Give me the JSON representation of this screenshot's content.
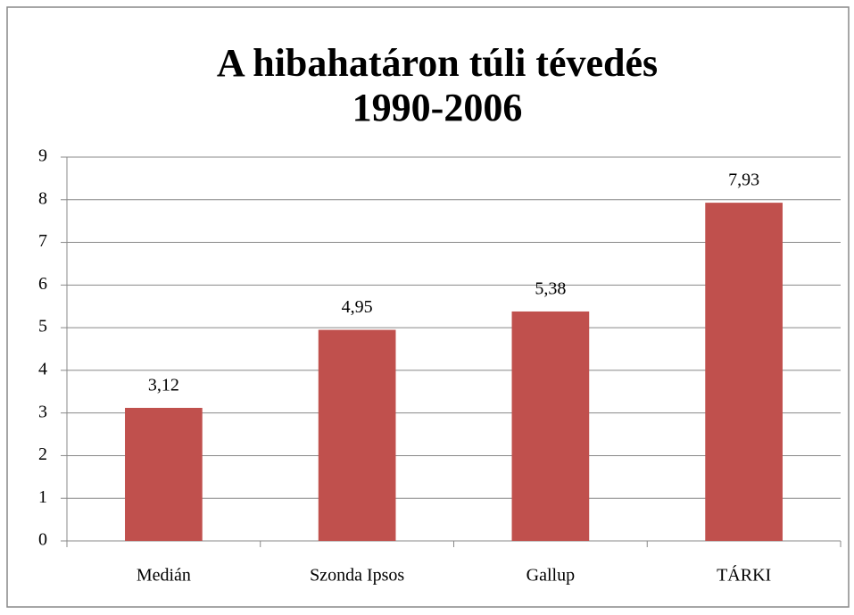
{
  "chart_data": {
    "type": "bar",
    "title": [
      "A hibahatáron túli tévedés",
      "1990-2006"
    ],
    "categories": [
      "Medián",
      "Szonda Ipsos",
      "Gallup",
      "TÁRKI"
    ],
    "values": [
      3.12,
      4.95,
      5.38,
      7.93
    ],
    "value_labels": [
      "3,12",
      "4,95",
      "5,38",
      "7,93"
    ],
    "color": "#c0504d",
    "ylim": [
      0,
      9
    ],
    "yticks": [
      0,
      1,
      2,
      3,
      4,
      5,
      6,
      7,
      8,
      9
    ],
    "grid": true
  }
}
